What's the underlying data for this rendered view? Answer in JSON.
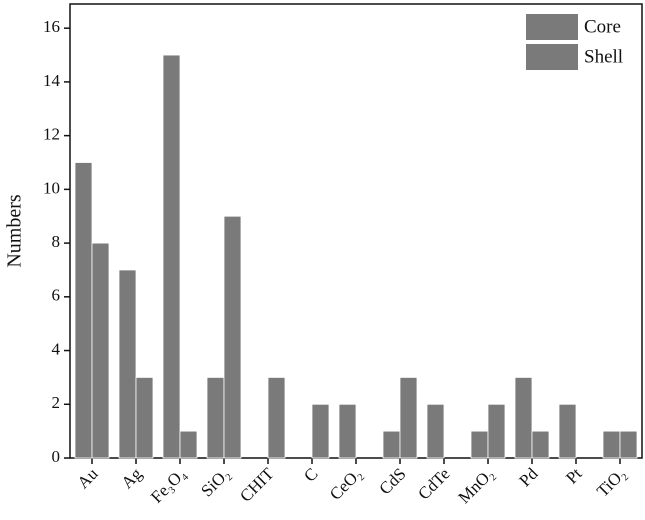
{
  "chart_data": {
    "type": "bar",
    "y_label": "Numbers",
    "categories": [
      "Au",
      "Ag",
      "Fe₃O₄",
      "SiO₂",
      "CHIT",
      "C",
      "CeO₂",
      "CdS",
      "CdTe",
      "MnO₂",
      "Pd",
      "Pt",
      "TiO₂"
    ],
    "series": [
      {
        "name": "Core",
        "color": "#7a7a7a",
        "values": [
          11,
          7,
          15,
          3,
          0,
          0,
          2,
          1,
          2,
          1,
          3,
          2,
          1
        ]
      },
      {
        "name": "Shell",
        "color": "#7a7a7a",
        "values": [
          8,
          3,
          1,
          9,
          3,
          2,
          0,
          3,
          0,
          2,
          1,
          0,
          1
        ]
      }
    ],
    "ylim": [
      0,
      16.9
    ],
    "yticks": [
      0,
      2,
      4,
      6,
      8,
      10,
      12,
      14,
      16
    ],
    "grid": false,
    "legend": "top-right"
  }
}
